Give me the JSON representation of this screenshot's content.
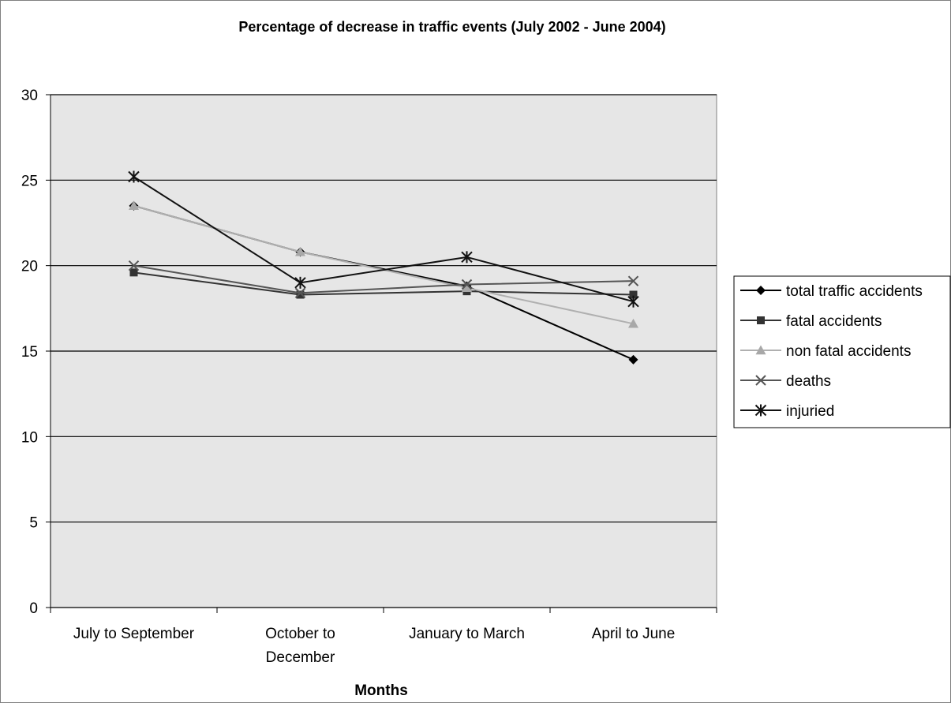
{
  "chart_data": {
    "type": "line",
    "title": "Percentage of decrease in traffic events (July 2002 - June 2004)",
    "xlabel": "Months",
    "ylabel": "",
    "categories": [
      [
        "July to September"
      ],
      [
        "October to",
        "December"
      ],
      [
        "January to March"
      ],
      [
        "April to June"
      ]
    ],
    "ylim": [
      0,
      30
    ],
    "yticks": [
      0,
      5,
      10,
      15,
      20,
      25,
      30
    ],
    "grid": true,
    "legend_position": "right",
    "series": [
      {
        "name": "total traffic accidents",
        "values": [
          23.5,
          20.8,
          18.8,
          14.5
        ],
        "marker": "diamond",
        "color": "#000000",
        "marker_color": "#000000"
      },
      {
        "name": "fatal accidents",
        "values": [
          19.6,
          18.3,
          18.5,
          18.3
        ],
        "marker": "square",
        "color": "#333333",
        "marker_color": "#333333"
      },
      {
        "name": "non fatal accidents",
        "values": [
          23.5,
          20.8,
          18.7,
          16.6
        ],
        "marker": "triangle",
        "color": "#b0b0b0",
        "marker_color": "#a8a8a8"
      },
      {
        "name": "deaths",
        "values": [
          20.0,
          18.4,
          18.9,
          19.1
        ],
        "marker": "x",
        "color": "#555555",
        "marker_color": "#555555"
      },
      {
        "name": "injuried",
        "values": [
          25.2,
          19.0,
          20.5,
          17.9
        ],
        "marker": "star",
        "color": "#111111",
        "marker_color": "#111111"
      }
    ],
    "colors": {
      "plot_background": "#e6e6e6",
      "gridline": "#000000",
      "frame": "#808080"
    }
  }
}
